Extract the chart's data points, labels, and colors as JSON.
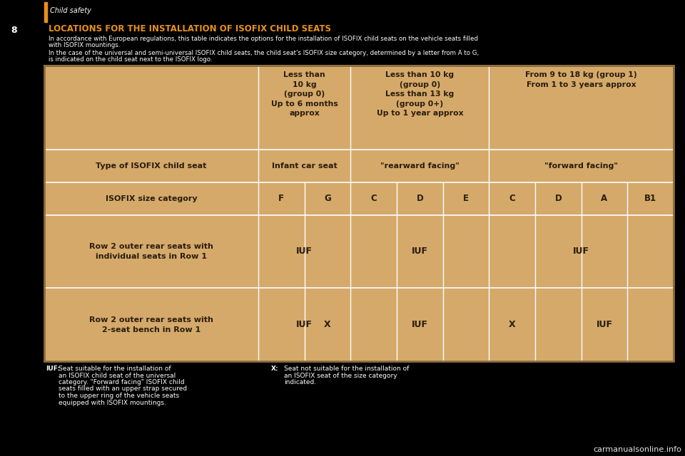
{
  "bg_color": "#000000",
  "table_bg": "#d4a96a",
  "table_border": "#ffffff",
  "text_color": "#2b1d0e",
  "orange_bar_color": "#e8901a",
  "title_text": "LOCATIONS FOR THE INSTALLATION OF ISOFIX CHILD SEATS",
  "section_label": "Child safety",
  "page_number": "8",
  "intro_line1": "In accordance with European regulations, this table indicates the options for the installation of ISOFIX child seats on the vehicle seats filled",
  "intro_line2": "with ISOFIX mountings.",
  "intro_line3": "In the case of the universal and semi-universal ISOFIX child seats, the child seat's ISOFIX size category, determined by a letter from A to G,",
  "intro_line4": "is indicated on the child seat next to the ISOFIX logo.",
  "col_header1": "Less than\n10 kg\n(group 0)\nUp to 6 months\napprox",
  "col_header2": "Less than 10 kg\n(group 0)\nLess than 13 kg\n(group 0+)\nUp to 1 year approx",
  "col_header3": "From 9 to 18 kg (group 1)\nFrom 1 to 3 years approx",
  "row_type_label": "Type of ISOFIX child seat",
  "row_type_col1": "Infant car seat",
  "row_type_col2": "\"rearward facing\"",
  "row_type_col3": "\"forward facing\"",
  "row_size_label": "ISOFIX size category",
  "size_cats": [
    "F",
    "G",
    "C",
    "D",
    "E",
    "C",
    "D",
    "A",
    "B1"
  ],
  "row1_label": "Row 2 outer rear seats with\nindividual seats in Row 1",
  "row2_label": "Row 2 outer rear seats with\n2-seat bench in Row 1",
  "watermark": "carmanualsonline.info",
  "note1_label": "IUF:",
  "note1_lines": [
    "Seat suitable for the installation of",
    "an ISOFIX child seat of the universal",
    "category. \"Forward facing\" ISOFIX child",
    "seats filled with an upper strap secured",
    "to the upper ring of the vehicle seats",
    "equipped with ISOFIX mountings."
  ],
  "note2_label": "X:",
  "note2_lines": [
    "Seat not suitable for the installation of",
    "an ISOFIX seat of the size category",
    "indicated."
  ]
}
